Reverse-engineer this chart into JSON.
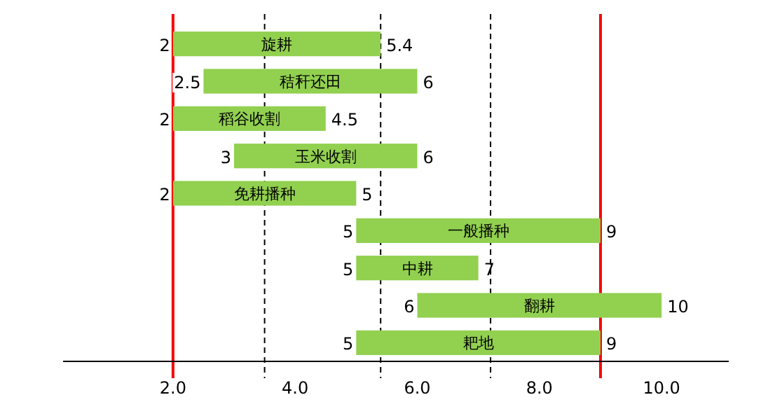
{
  "chart_data": {
    "type": "bar",
    "orientation": "horizontal",
    "categories": [
      "旋耕",
      "秸秆还田",
      "稻谷收割",
      "玉米收割",
      "免耕播种",
      "一般播种",
      "中耕",
      "翻耕",
      "耙地"
    ],
    "base": [
      2,
      2.5,
      2,
      3,
      2,
      5,
      5,
      6,
      5
    ],
    "values": [
      3.4,
      3.5,
      2.5,
      3,
      3,
      4,
      2,
      4,
      4
    ],
    "color": "#92d050",
    "xlim": [
      0.2,
      11.1
    ],
    "xticks": [
      {
        "value": 2,
        "label": "2.0"
      },
      {
        "value": 4,
        "label": "4.0"
      },
      {
        "value": 6,
        "label": "6.0"
      },
      {
        "value": 8,
        "label": "8.0"
      },
      {
        "value": 10,
        "label": "10.0"
      }
    ],
    "tick_labels": "x",
    "grid": false,
    "ref_lines": [
      {
        "axis": "x",
        "value": 2,
        "label": null,
        "color": "#ff0000",
        "line_style": "solid"
      },
      {
        "axis": "x",
        "value": 9,
        "label": null,
        "color": "#ff0000",
        "line_style": "solid"
      },
      {
        "axis": "x",
        "value": 3.5,
        "label": null,
        "color": "#000000",
        "line_style": "dashed"
      },
      {
        "axis": "x",
        "value": 5.4,
        "label": null,
        "color": "#000000",
        "line_style": "dashed"
      },
      {
        "axis": "x",
        "value": 7.2,
        "label": null,
        "color": "#000000",
        "line_style": "dashed"
      }
    ],
    "annotations": [
      {
        "text": "2",
        "x": 2,
        "y": "旋耕"
      },
      {
        "text": "5.4",
        "x": 5.4,
        "y": "旋耕"
      },
      {
        "text": "2.5",
        "x": 2.5,
        "y": "秸秆还田"
      },
      {
        "text": "6",
        "x": 6,
        "y": "秸秆还田"
      },
      {
        "text": "2",
        "x": 2,
        "y": "稻谷收割"
      },
      {
        "text": "4.5",
        "x": 4.5,
        "y": "稻谷收割"
      },
      {
        "text": "3",
        "x": 3,
        "y": "玉米收割"
      },
      {
        "text": "6",
        "x": 6,
        "y": "玉米收割"
      },
      {
        "text": "2",
        "x": 2,
        "y": "免耕播种"
      },
      {
        "text": "5",
        "x": 5,
        "y": "免耕播种"
      },
      {
        "text": "5",
        "x": 5,
        "y": "一般播种"
      },
      {
        "text": "9",
        "x": 9,
        "y": "一般播种"
      },
      {
        "text": "5",
        "x": 5,
        "y": "中耕"
      },
      {
        "text": "7",
        "x": 7,
        "y": "中耕"
      },
      {
        "text": "6",
        "x": 6,
        "y": "翻耕"
      },
      {
        "text": "10",
        "x": 10,
        "y": "翻耕"
      },
      {
        "text": "5",
        "x": 5,
        "y": "耙地"
      },
      {
        "text": "9",
        "x": 9,
        "y": "耙地"
      }
    ]
  }
}
